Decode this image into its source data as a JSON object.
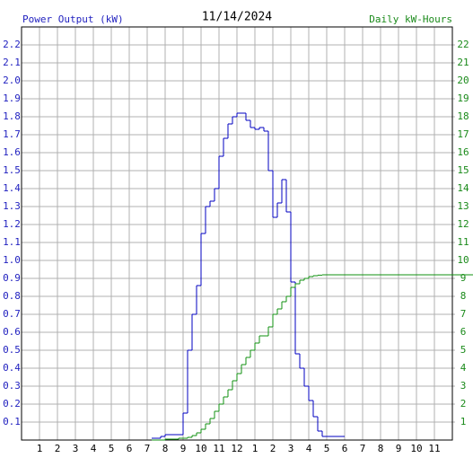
{
  "chart_data": {
    "type": "step",
    "title": "11/14/2024",
    "y_label": "Power Output (kW)",
    "y2_label": "Daily kW-Hours",
    "y_label_color": "#1f1fbf",
    "y2_label_color": "#1a8a1a",
    "grid": true,
    "xlim": [
      0,
      24
    ],
    "xticks": [
      1,
      2,
      3,
      4,
      5,
      6,
      7,
      8,
      9,
      10,
      11,
      12,
      {
        "value": 13,
        "label": "1"
      },
      {
        "value": 14,
        "label": "2"
      },
      {
        "value": 15,
        "label": "3"
      },
      {
        "value": 16,
        "label": "4"
      },
      {
        "value": 17,
        "label": "5"
      },
      {
        "value": 18,
        "label": "6"
      },
      {
        "value": 19,
        "label": "7"
      },
      {
        "value": 20,
        "label": "8"
      },
      {
        "value": 21,
        "label": "9"
      },
      {
        "value": 22,
        "label": "10"
      },
      {
        "value": 23,
        "label": "11"
      }
    ],
    "ylim": [
      0,
      2.3
    ],
    "yticks": [
      0.1,
      0.2,
      0.3,
      0.4,
      0.5,
      0.6,
      0.7,
      0.8,
      0.9,
      {
        "value": 1,
        "label": "1.0"
      },
      1.1,
      1.2,
      1.3,
      1.4,
      1.5,
      1.6,
      1.7,
      1.8,
      1.9,
      {
        "value": 2,
        "label": "2.0"
      },
      2.1,
      2.2
    ],
    "y2lim": [
      0,
      23
    ],
    "y2ticks": [
      1,
      2,
      3,
      4,
      5,
      6,
      7,
      8,
      9,
      10,
      11,
      12,
      13,
      14,
      15,
      16,
      17,
      18,
      19,
      20,
      21,
      22
    ],
    "series": [
      {
        "name": "Power Output (kW)",
        "color": "#0000c0",
        "x": [
          7.25,
          7.5,
          7.75,
          8,
          8.25,
          8.5,
          8.75,
          9,
          9.25,
          9.5,
          9.75,
          10,
          10.25,
          10.5,
          10.75,
          11,
          11.25,
          11.5,
          11.75,
          12,
          12.25,
          12.5,
          12.75,
          13,
          13.25,
          13.5,
          13.75,
          14,
          14.25,
          14.5,
          14.75,
          15,
          15.25,
          15.5,
          15.75,
          16,
          16.25,
          16.5,
          16.75,
          17,
          17.25,
          17.5,
          17.75
        ],
        "values": [
          0.01,
          0.01,
          0.02,
          0.03,
          0.03,
          0.03,
          0.03,
          0.15,
          0.5,
          0.7,
          0.86,
          1.15,
          1.3,
          1.33,
          1.4,
          1.58,
          1.68,
          1.76,
          1.8,
          1.82,
          1.82,
          1.78,
          1.74,
          1.73,
          1.74,
          1.72,
          1.5,
          1.24,
          1.32,
          1.45,
          1.27,
          0.88,
          0.48,
          0.4,
          0.3,
          0.22,
          0.13,
          0.05,
          0.02,
          0.02,
          0.02,
          0.02,
          0.02
        ]
      },
      {
        "name": "Daily kW-Hours",
        "color": "#109010",
        "axis": "y2",
        "x": [
          7.25,
          7.5,
          7.75,
          8,
          8.25,
          8.5,
          8.75,
          9,
          9.25,
          9.5,
          9.75,
          10,
          10.25,
          10.5,
          10.75,
          11,
          11.25,
          11.5,
          11.75,
          12,
          12.25,
          12.5,
          12.75,
          13,
          13.25,
          13.5,
          13.75,
          14,
          14.25,
          14.5,
          14.75,
          15,
          15.25,
          15.5,
          15.75,
          16,
          16.25,
          16.5,
          16.75,
          23.75
        ],
        "values": [
          0,
          0,
          0,
          0.05,
          0.05,
          0.05,
          0.1,
          0.1,
          0.15,
          0.25,
          0.4,
          0.6,
          0.9,
          1.2,
          1.6,
          2.0,
          2.4,
          2.8,
          3.3,
          3.7,
          4.2,
          4.6,
          5.0,
          5.4,
          5.8,
          5.8,
          6.3,
          7.0,
          7.3,
          7.7,
          8.0,
          8.5,
          8.7,
          8.9,
          9.0,
          9.1,
          9.15,
          9.18,
          9.2,
          9.2
        ]
      }
    ]
  }
}
